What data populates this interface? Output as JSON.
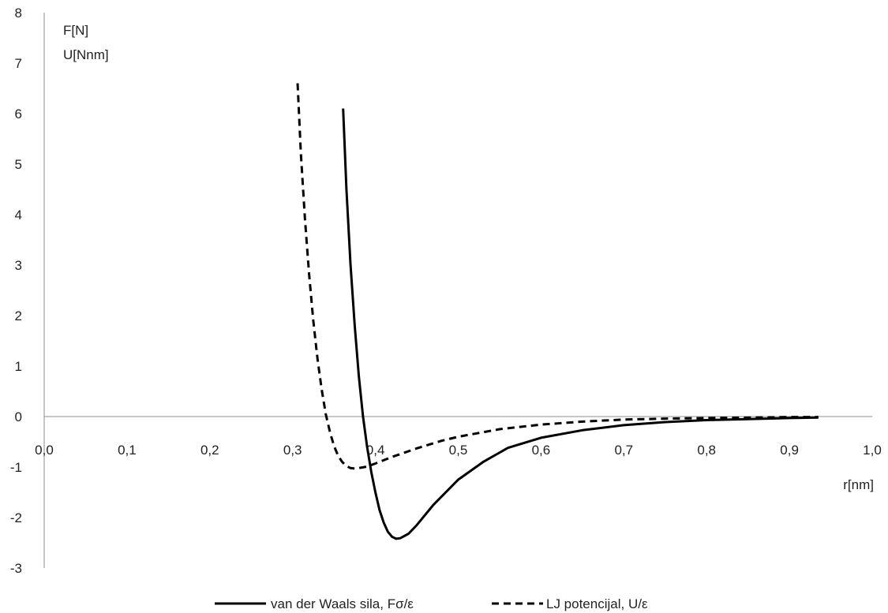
{
  "chart_data": {
    "type": "line",
    "title": "",
    "xlabel": "r[nm]",
    "ylabel": [
      "F[N]",
      "U[Nnm]"
    ],
    "xlim": [
      0.0,
      1.0
    ],
    "ylim": [
      -3,
      8
    ],
    "x_ticks": [
      "0,0",
      "0,1",
      "0,2",
      "0,3",
      "0,4",
      "0,5",
      "0,6",
      "0,7",
      "0,8",
      "0,9",
      "1,0"
    ],
    "y_ticks": [
      "-3",
      "-2",
      "-1",
      "0",
      "1",
      "2",
      "3",
      "4",
      "5",
      "6",
      "7",
      "8"
    ],
    "grid": false,
    "legend_position": "bottom",
    "series": [
      {
        "name": "van der Waals sila, Fσ/ε",
        "style": "solid",
        "color": "#000000",
        "points": [
          [
            0.361,
            6.1
          ],
          [
            0.365,
            4.5
          ],
          [
            0.37,
            3.0
          ],
          [
            0.375,
            1.8
          ],
          [
            0.38,
            0.8
          ],
          [
            0.385,
            0.0
          ],
          [
            0.39,
            -0.6
          ],
          [
            0.395,
            -1.1
          ],
          [
            0.4,
            -1.5
          ],
          [
            0.405,
            -1.85
          ],
          [
            0.41,
            -2.1
          ],
          [
            0.415,
            -2.28
          ],
          [
            0.42,
            -2.38
          ],
          [
            0.425,
            -2.42
          ],
          [
            0.43,
            -2.41
          ],
          [
            0.44,
            -2.32
          ],
          [
            0.45,
            -2.15
          ],
          [
            0.47,
            -1.75
          ],
          [
            0.5,
            -1.25
          ],
          [
            0.53,
            -0.9
          ],
          [
            0.56,
            -0.62
          ],
          [
            0.6,
            -0.42
          ],
          [
            0.65,
            -0.27
          ],
          [
            0.7,
            -0.17
          ],
          [
            0.75,
            -0.11
          ],
          [
            0.8,
            -0.07
          ],
          [
            0.85,
            -0.05
          ],
          [
            0.9,
            -0.03
          ],
          [
            0.935,
            -0.02
          ]
        ]
      },
      {
        "name": "LJ potencijal, U/ε",
        "style": "dashed",
        "color": "#000000",
        "points": [
          [
            0.306,
            6.6
          ],
          [
            0.31,
            5.2
          ],
          [
            0.315,
            3.9
          ],
          [
            0.32,
            2.8
          ],
          [
            0.325,
            1.9
          ],
          [
            0.33,
            1.15
          ],
          [
            0.335,
            0.55
          ],
          [
            0.34,
            0.05
          ],
          [
            0.345,
            -0.3
          ],
          [
            0.35,
            -0.58
          ],
          [
            0.355,
            -0.78
          ],
          [
            0.36,
            -0.9
          ],
          [
            0.365,
            -0.98
          ],
          [
            0.37,
            -1.02
          ],
          [
            0.375,
            -1.03
          ],
          [
            0.38,
            -1.02
          ],
          [
            0.39,
            -0.99
          ],
          [
            0.4,
            -0.93
          ],
          [
            0.42,
            -0.8
          ],
          [
            0.45,
            -0.63
          ],
          [
            0.48,
            -0.48
          ],
          [
            0.5,
            -0.4
          ],
          [
            0.55,
            -0.25
          ],
          [
            0.6,
            -0.16
          ],
          [
            0.65,
            -0.1
          ],
          [
            0.7,
            -0.06
          ],
          [
            0.75,
            -0.04
          ],
          [
            0.8,
            -0.03
          ],
          [
            0.9,
            -0.01
          ],
          [
            0.935,
            -0.01
          ]
        ]
      }
    ]
  }
}
